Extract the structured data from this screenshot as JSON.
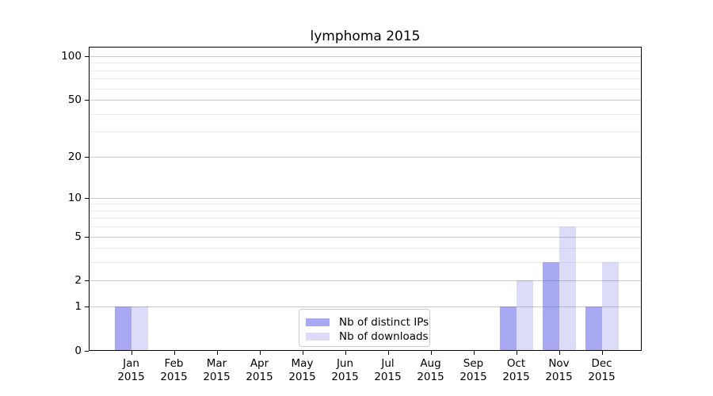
{
  "chart_data": {
    "type": "bar",
    "title": "lymphoma 2015",
    "xlabel": "",
    "ylabel": "",
    "categories": [
      "Jan\n2015",
      "Feb\n2015",
      "Mar\n2015",
      "Apr\n2015",
      "May\n2015",
      "Jun\n2015",
      "Jul\n2015",
      "Aug\n2015",
      "Sep\n2015",
      "Oct\n2015",
      "Nov\n2015",
      "Dec\n2015"
    ],
    "series": [
      {
        "name": "Nb of distinct IPs",
        "color": "#a9a9f3",
        "values": [
          1,
          0,
          0,
          0,
          0,
          0,
          0,
          0,
          0,
          1,
          3,
          1
        ]
      },
      {
        "name": "Nb of downloads",
        "color": "#dcdcf9",
        "values": [
          1,
          0,
          0,
          0,
          0,
          0,
          0,
          0,
          0,
          2,
          6,
          3
        ]
      }
    ],
    "yticks": [
      0,
      1,
      2,
      5,
      10,
      20,
      50,
      100
    ],
    "y_minor_gridlines": [
      3,
      4,
      6,
      7,
      8,
      9,
      30,
      40,
      60,
      70,
      80,
      90
    ],
    "y_scale": "log1p",
    "ylim": [
      0,
      116
    ],
    "grid": "on",
    "legend_position": "lower center"
  }
}
